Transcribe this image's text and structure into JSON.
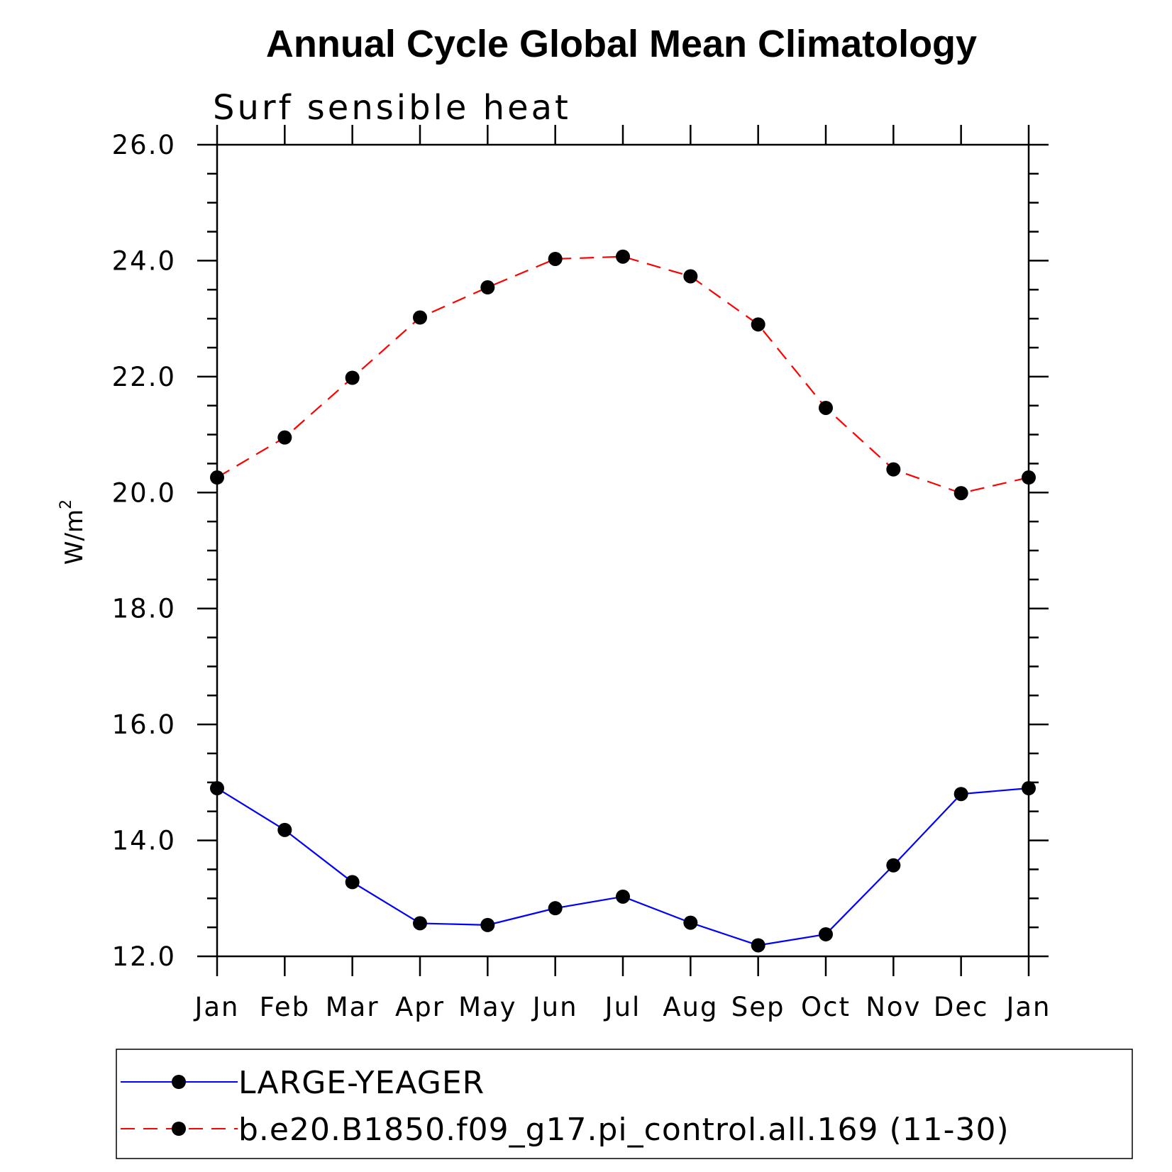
{
  "chart_data": {
    "type": "line",
    "title": "Annual Cycle Global Mean Climatology",
    "subtitle": "Surf sensible heat",
    "ylabel": "W/m",
    "ylabel_superscript": "2",
    "xlabel": "",
    "categories": [
      "Jan",
      "Feb",
      "Mar",
      "Apr",
      "May",
      "Jun",
      "Jul",
      "Aug",
      "Sep",
      "Oct",
      "Nov",
      "Dec",
      "Jan"
    ],
    "ylim": [
      12.0,
      26.0
    ],
    "yticks": [
      "12.0",
      "14.0",
      "16.0",
      "18.0",
      "20.0",
      "22.0",
      "24.0",
      "26.0"
    ],
    "grid": false,
    "legend_position": "bottom",
    "series": [
      {
        "name": "LARGE-YEAGER",
        "color": "#0000ff",
        "dash": "solid",
        "marker": "circle",
        "values": [
          14.9,
          14.18,
          13.28,
          12.57,
          12.54,
          12.83,
          13.03,
          12.58,
          12.19,
          12.38,
          13.57,
          14.8,
          14.9
        ]
      },
      {
        "name": "b.e20.B1850.f09_g17.pi_control.all.169 (11-30)",
        "color": "#ff0000",
        "dash": "dashed",
        "marker": "circle",
        "values": [
          20.26,
          20.95,
          21.98,
          23.02,
          23.54,
          24.03,
          24.07,
          23.73,
          22.9,
          21.46,
          20.4,
          19.99,
          20.26
        ]
      }
    ]
  }
}
